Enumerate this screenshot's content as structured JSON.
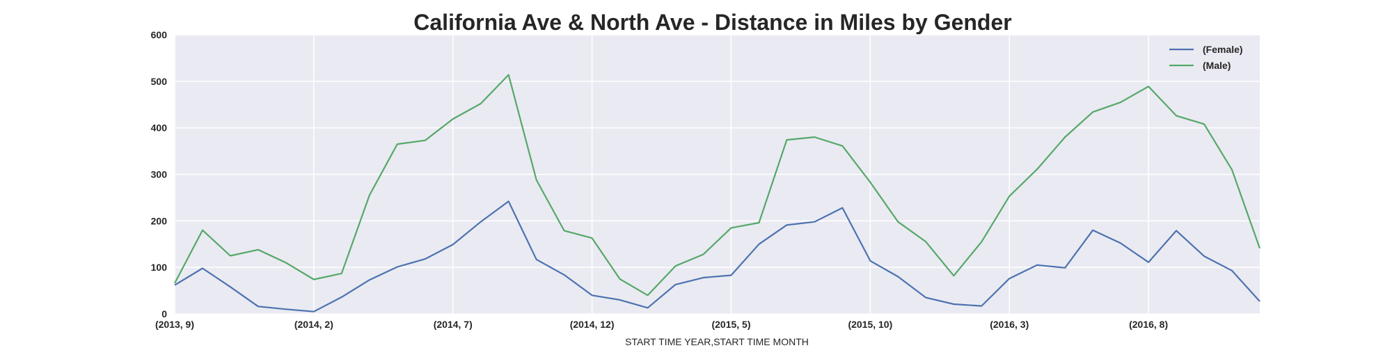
{
  "chart_data": {
    "type": "line",
    "title": "California Ave & North Ave - Distance in Miles by Gender",
    "xlabel": "START TIME YEAR,START TIME MONTH",
    "ylabel": "",
    "ylim": [
      0,
      600
    ],
    "yticks": [
      "0",
      "100",
      "200",
      "300",
      "400",
      "500",
      "600"
    ],
    "x": [
      "(2013, 9)",
      "(2013, 10)",
      "(2013, 11)",
      "(2013, 12)",
      "(2014, 1)",
      "(2014, 2)",
      "(2014, 3)",
      "(2014, 4)",
      "(2014, 5)",
      "(2014, 6)",
      "(2014, 7)",
      "(2014, 8)",
      "(2014, 9)",
      "(2014, 10)",
      "(2014, 11)",
      "(2014, 12)",
      "(2015, 1)",
      "(2015, 2)",
      "(2015, 3)",
      "(2015, 4)",
      "(2015, 5)",
      "(2015, 6)",
      "(2015, 7)",
      "(2015, 8)",
      "(2015, 9)",
      "(2015, 10)",
      "(2015, 11)",
      "(2015, 12)",
      "(2016, 1)",
      "(2016, 2)",
      "(2016, 3)",
      "(2016, 4)",
      "(2016, 5)",
      "(2016, 6)",
      "(2016, 7)",
      "(2016, 8)",
      "(2016, 9)",
      "(2016, 10)",
      "(2016, 11)",
      "(2016, 12)"
    ],
    "xticks": [
      "(2013, 9)",
      "(2014, 2)",
      "(2014, 7)",
      "(2014, 12)",
      "(2015, 5)",
      "(2015, 10)",
      "(2016, 3)",
      "(2016, 8)"
    ],
    "series": [
      {
        "name": "(Female)",
        "color": "#4c72b0",
        "values": [
          62,
          98,
          58,
          16,
          10,
          5,
          36,
          73,
          101,
          118,
          149,
          198,
          242,
          117,
          84,
          40,
          30,
          13,
          63,
          78,
          83,
          150,
          191,
          198,
          228,
          114,
          80,
          35,
          21,
          17,
          76,
          105,
          99,
          180,
          152,
          111,
          179,
          124,
          93,
          27
        ]
      },
      {
        "name": "(Male)",
        "color": "#55a868",
        "values": [
          66,
          180,
          125,
          138,
          110,
          74,
          87,
          255,
          365,
          373,
          419,
          452,
          514,
          288,
          179,
          163,
          75,
          40,
          103,
          128,
          185,
          196,
          374,
          380,
          361,
          283,
          198,
          155,
          82,
          155,
          253,
          311,
          380,
          434,
          455,
          489,
          426,
          408,
          310,
          141
        ]
      }
    ],
    "legend_position": "top-right",
    "grid": true,
    "plot_background": "#eaeaf2",
    "grid_color": "#ffffff"
  }
}
